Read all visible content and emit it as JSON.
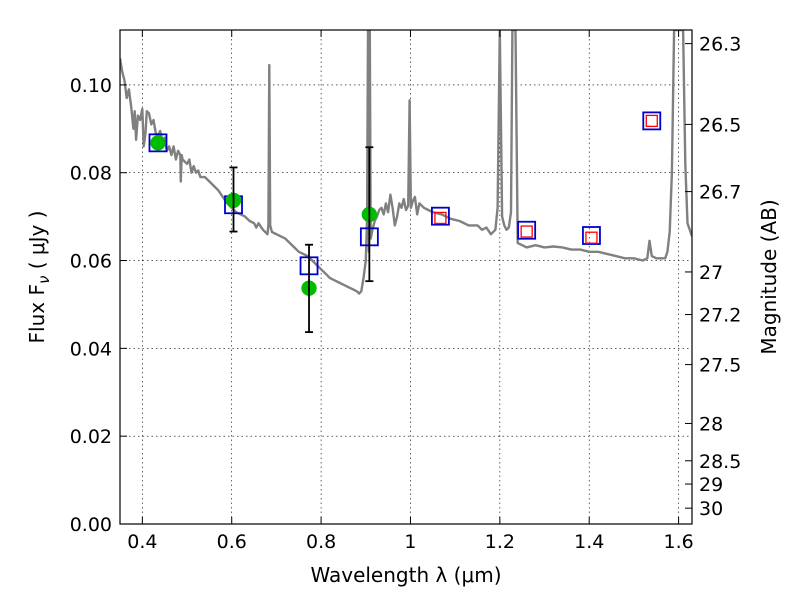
{
  "chart_data": {
    "type": "scatter",
    "xlabel": "Wavelength  λ (μm)",
    "ylabel": "Flux  F",
    "ylabel_sub": "ν",
    "ylabel_unit": "  ( μJy )",
    "y2label": "Magnitude (AB)",
    "xlim": [
      0.35,
      1.63
    ],
    "ylim": [
      0.0,
      0.1125
    ],
    "grid": true,
    "x_ticks": [
      {
        "value": 0.4,
        "label": "0.4"
      },
      {
        "value": 0.6,
        "label": "0.6"
      },
      {
        "value": 0.8,
        "label": "0.8"
      },
      {
        "value": 1.0,
        "label": "1"
      },
      {
        "value": 1.2,
        "label": "1.2"
      },
      {
        "value": 1.4,
        "label": "1.4"
      },
      {
        "value": 1.6,
        "label": "1.6"
      }
    ],
    "y_ticks": [
      {
        "value": 0.0,
        "label": "0.00"
      },
      {
        "value": 0.02,
        "label": "0.02"
      },
      {
        "value": 0.04,
        "label": "0.04"
      },
      {
        "value": 0.06,
        "label": "0.06"
      },
      {
        "value": 0.08,
        "label": "0.08"
      },
      {
        "value": 0.1,
        "label": "0.10"
      }
    ],
    "mag_ticks": [
      {
        "label": "26.3",
        "flux": 0.1094
      },
      {
        "label": "26.5",
        "flux": 0.091
      },
      {
        "label": "26.7",
        "flux": 0.0757
      },
      {
        "label": "27",
        "flux": 0.0574
      },
      {
        "label": "27.2",
        "flux": 0.0477
      },
      {
        "label": "27.5",
        "flux": 0.0363
      },
      {
        "label": "28",
        "flux": 0.0229
      },
      {
        "label": "28.5",
        "flux": 0.0144
      },
      {
        "label": "29",
        "flux": 0.0091
      },
      {
        "label": "30",
        "flux": 0.0036
      }
    ],
    "series": [
      {
        "kind": "model_spectrum",
        "color": "#808080",
        "points": [
          [
            0.35,
            0.106
          ],
          [
            0.355,
            0.103
          ],
          [
            0.36,
            0.101
          ],
          [
            0.365,
            0.097
          ],
          [
            0.37,
            0.099
          ],
          [
            0.375,
            0.095
          ],
          [
            0.38,
            0.09
          ],
          [
            0.383,
            0.094
          ],
          [
            0.386,
            0.0875
          ],
          [
            0.39,
            0.093
          ],
          [
            0.395,
            0.092
          ],
          [
            0.4,
            0.0945
          ],
          [
            0.403,
            0.086
          ],
          [
            0.407,
            0.089
          ],
          [
            0.41,
            0.094
          ],
          [
            0.415,
            0.0935
          ],
          [
            0.42,
            0.091
          ],
          [
            0.425,
            0.092
          ],
          [
            0.43,
            0.089
          ],
          [
            0.435,
            0.0885
          ],
          [
            0.44,
            0.0895
          ],
          [
            0.445,
            0.087
          ],
          [
            0.45,
            0.088
          ],
          [
            0.455,
            0.085
          ],
          [
            0.46,
            0.086
          ],
          [
            0.465,
            0.084
          ],
          [
            0.47,
            0.086
          ],
          [
            0.475,
            0.083
          ],
          [
            0.48,
            0.085
          ],
          [
            0.485,
            0.084
          ],
          [
            0.486,
            0.078
          ],
          [
            0.488,
            0.084
          ],
          [
            0.49,
            0.083
          ],
          [
            0.5,
            0.082
          ],
          [
            0.505,
            0.083
          ],
          [
            0.51,
            0.08
          ],
          [
            0.515,
            0.0815
          ],
          [
            0.52,
            0.08
          ],
          [
            0.525,
            0.0805
          ],
          [
            0.53,
            0.079
          ],
          [
            0.54,
            0.079
          ],
          [
            0.55,
            0.078
          ],
          [
            0.56,
            0.077
          ],
          [
            0.57,
            0.076
          ],
          [
            0.58,
            0.0745
          ],
          [
            0.59,
            0.073
          ],
          [
            0.6,
            0.072
          ],
          [
            0.61,
            0.071
          ],
          [
            0.62,
            0.0705
          ],
          [
            0.63,
            0.07
          ],
          [
            0.64,
            0.069
          ],
          [
            0.65,
            0.0685
          ],
          [
            0.655,
            0.0675
          ],
          [
            0.66,
            0.0685
          ],
          [
            0.67,
            0.067
          ],
          [
            0.675,
            0.0665
          ],
          [
            0.68,
            0.066
          ],
          [
            0.682,
            0.068
          ],
          [
            0.684,
            0.1045
          ],
          [
            0.686,
            0.068
          ],
          [
            0.69,
            0.0665
          ],
          [
            0.7,
            0.066
          ],
          [
            0.71,
            0.0655
          ],
          [
            0.72,
            0.065
          ],
          [
            0.73,
            0.064
          ],
          [
            0.74,
            0.063
          ],
          [
            0.75,
            0.062
          ],
          [
            0.76,
            0.0615
          ],
          [
            0.77,
            0.061
          ],
          [
            0.78,
            0.06
          ],
          [
            0.79,
            0.059
          ],
          [
            0.8,
            0.058
          ],
          [
            0.81,
            0.057
          ],
          [
            0.82,
            0.056
          ],
          [
            0.83,
            0.0555
          ],
          [
            0.84,
            0.055
          ],
          [
            0.85,
            0.0545
          ],
          [
            0.86,
            0.054
          ],
          [
            0.87,
            0.0535
          ],
          [
            0.88,
            0.053
          ],
          [
            0.885,
            0.0525
          ],
          [
            0.89,
            0.053
          ],
          [
            0.895,
            0.056
          ],
          [
            0.9,
            0.06
          ],
          [
            0.903,
            0.07
          ],
          [
            0.905,
            0.1125
          ],
          [
            0.907,
            0.062
          ],
          [
            0.909,
            0.1125
          ],
          [
            0.911,
            0.065
          ],
          [
            0.915,
            0.067
          ],
          [
            0.92,
            0.069
          ],
          [
            0.925,
            0.07
          ],
          [
            0.93,
            0.0715
          ],
          [
            0.935,
            0.072
          ],
          [
            0.94,
            0.0705
          ],
          [
            0.945,
            0.073
          ],
          [
            0.95,
            0.071
          ],
          [
            0.955,
            0.075
          ],
          [
            0.96,
            0.072
          ],
          [
            0.965,
            0.068
          ],
          [
            0.97,
            0.07
          ],
          [
            0.975,
            0.073
          ],
          [
            0.98,
            0.072
          ],
          [
            0.985,
            0.074
          ],
          [
            0.99,
            0.0715
          ],
          [
            0.995,
            0.0725
          ],
          [
            0.998,
            0.0965
          ],
          [
            1.001,
            0.072
          ],
          [
            1.005,
            0.0735
          ],
          [
            1.01,
            0.0745
          ],
          [
            1.015,
            0.0705
          ],
          [
            1.02,
            0.073
          ],
          [
            1.03,
            0.072
          ],
          [
            1.04,
            0.0715
          ],
          [
            1.05,
            0.071
          ],
          [
            1.07,
            0.0705
          ],
          [
            1.09,
            0.0695
          ],
          [
            1.11,
            0.069
          ],
          [
            1.13,
            0.068
          ],
          [
            1.15,
            0.068
          ],
          [
            1.16,
            0.067
          ],
          [
            1.17,
            0.0675
          ],
          [
            1.18,
            0.066
          ],
          [
            1.19,
            0.067
          ],
          [
            1.195,
            0.072
          ],
          [
            1.2,
            0.1125
          ],
          [
            1.205,
            0.07
          ],
          [
            1.21,
            0.068
          ],
          [
            1.215,
            0.067
          ],
          [
            1.22,
            0.0675
          ],
          [
            1.225,
            0.071
          ],
          [
            1.228,
            0.1125
          ],
          [
            1.235,
            0.1125
          ],
          [
            1.24,
            0.064
          ],
          [
            1.25,
            0.0635
          ],
          [
            1.26,
            0.063
          ],
          [
            1.28,
            0.0635
          ],
          [
            1.3,
            0.063
          ],
          [
            1.32,
            0.0632
          ],
          [
            1.34,
            0.063
          ],
          [
            1.36,
            0.0625
          ],
          [
            1.38,
            0.0625
          ],
          [
            1.4,
            0.062
          ],
          [
            1.42,
            0.062
          ],
          [
            1.44,
            0.0615
          ],
          [
            1.46,
            0.061
          ],
          [
            1.48,
            0.0605
          ],
          [
            1.5,
            0.0605
          ],
          [
            1.52,
            0.06
          ],
          [
            1.53,
            0.0605
          ],
          [
            1.535,
            0.0645
          ],
          [
            1.54,
            0.061
          ],
          [
            1.55,
            0.0605
          ],
          [
            1.56,
            0.0605
          ],
          [
            1.57,
            0.0605
          ],
          [
            1.575,
            0.062
          ],
          [
            1.58,
            0.0665
          ],
          [
            1.585,
            0.08
          ],
          [
            1.59,
            0.1125
          ],
          [
            1.605,
            0.1125
          ],
          [
            1.61,
            0.1125
          ],
          [
            1.615,
            0.082
          ],
          [
            1.62,
            0.0685
          ],
          [
            1.63,
            0.0655
          ]
        ]
      },
      {
        "kind": "model_magnitudes",
        "marker": "open-square",
        "color": "#0000cc",
        "points": [
          [
            0.435,
            0.0868
          ],
          [
            0.604,
            0.0727
          ],
          [
            0.773,
            0.0588
          ],
          [
            0.908,
            0.0654
          ],
          [
            1.067,
            0.0701
          ],
          [
            1.26,
            0.0669
          ],
          [
            1.405,
            0.0657
          ],
          [
            1.54,
            0.0918
          ]
        ]
      },
      {
        "kind": "upper_limits",
        "marker": "small-open-square",
        "color": "#ff0000",
        "points": [
          [
            1.067,
            0.0697
          ],
          [
            1.26,
            0.0666
          ],
          [
            1.405,
            0.0652
          ],
          [
            1.54,
            0.0918
          ]
        ]
      },
      {
        "kind": "observed",
        "marker": "filled-circle",
        "color": "#00bb00",
        "points": [
          [
            0.435,
            0.0868
          ],
          [
            0.604,
            0.0737
          ],
          [
            0.773,
            0.0537
          ],
          [
            0.908,
            0.0705
          ]
        ]
      },
      {
        "kind": "errorbars",
        "color": "#000000",
        "points": [
          [
            0.604,
            0.0666,
            0.0812
          ],
          [
            0.773,
            0.0437,
            0.0636
          ],
          [
            0.908,
            0.0553,
            0.0858
          ]
        ]
      }
    ]
  }
}
